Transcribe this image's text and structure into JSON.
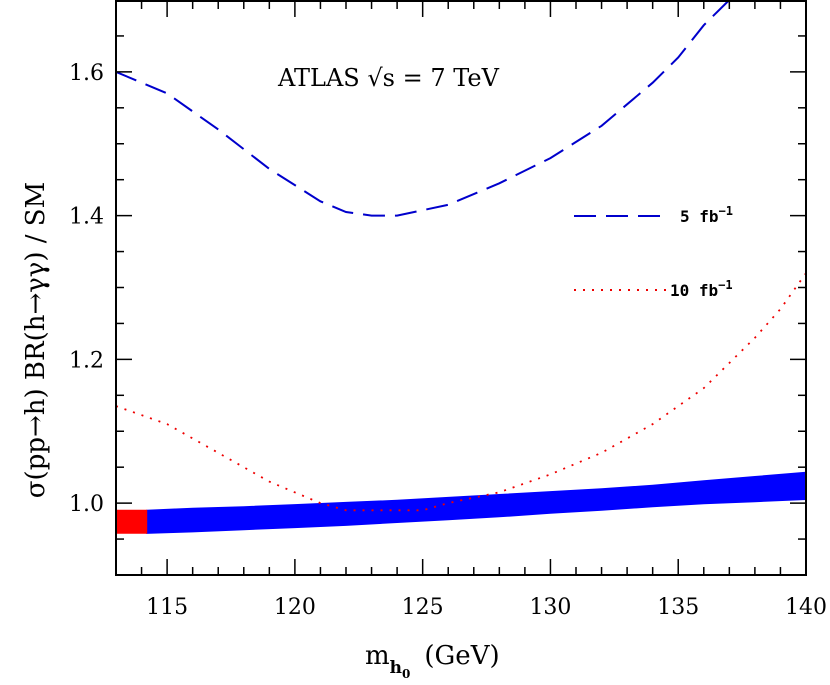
{
  "chart_data": {
    "type": "line",
    "annotation": "ATLAS √s = 7 TeV",
    "xlabel": {
      "main": "m",
      "sub": "h",
      "subsub": "0",
      "unit": "(GeV)"
    },
    "ylabel": "σ(pp→h) BR(h→γγ) / SM",
    "xlim": [
      113,
      140
    ],
    "ylim": [
      0.9,
      1.7
    ],
    "x_ticks": [
      115,
      120,
      125,
      130,
      135,
      140
    ],
    "y_ticks": [
      1.0,
      1.2,
      1.4,
      1.6
    ],
    "x_tick_labels": [
      "115",
      "120",
      "125",
      "130",
      "135",
      "140"
    ],
    "y_tick_labels": [
      "1.0",
      "1.2",
      "1.4",
      "1.6"
    ],
    "series": [
      {
        "name": "5 fb⁻¹",
        "name_base": "5 fb",
        "name_sup": "−1",
        "style": "dashed",
        "color": "#0000cc",
        "x": [
          113,
          115,
          117,
          119,
          121,
          122,
          123,
          124,
          126,
          128,
          130,
          132,
          134,
          135,
          136,
          137
        ],
        "y": [
          1.6,
          1.57,
          1.52,
          1.465,
          1.42,
          1.405,
          1.4,
          1.4,
          1.415,
          1.445,
          1.48,
          1.525,
          1.585,
          1.62,
          1.665,
          1.7
        ]
      },
      {
        "name": "10 fb⁻¹",
        "name_base": "10 fb",
        "name_sup": "−1",
        "style": "dotted",
        "color": "#ee0000",
        "x": [
          113,
          115,
          117,
          119,
          121,
          122,
          123,
          124,
          125,
          126,
          128,
          130,
          132,
          134,
          136,
          138,
          139,
          140
        ],
        "y": [
          1.135,
          1.11,
          1.07,
          1.03,
          1.0,
          0.99,
          0.99,
          0.99,
          0.99,
          1.0,
          1.015,
          1.04,
          1.07,
          1.11,
          1.16,
          1.23,
          1.27,
          1.32
        ]
      },
      {
        "name": "",
        "style": "band",
        "color": "#0000ff",
        "x": [
          114.2,
          116,
          118,
          120,
          122,
          124,
          126,
          128,
          130,
          132,
          134,
          136,
          138,
          140
        ],
        "y_low": [
          0.958,
          0.96,
          0.963,
          0.966,
          0.969,
          0.973,
          0.977,
          0.981,
          0.986,
          0.99,
          0.995,
          0.999,
          1.002,
          1.005
        ],
        "y_high": [
          0.99,
          0.993,
          0.995,
          0.998,
          1.001,
          1.004,
          1.008,
          1.012,
          1.016,
          1.02,
          1.025,
          1.031,
          1.037,
          1.043
        ]
      },
      {
        "name": "",
        "style": "band",
        "color": "#ff0000",
        "x": [
          113,
          114.2
        ],
        "y_low": [
          0.958,
          0.958
        ],
        "y_high": [
          0.99,
          0.99
        ]
      }
    ]
  }
}
